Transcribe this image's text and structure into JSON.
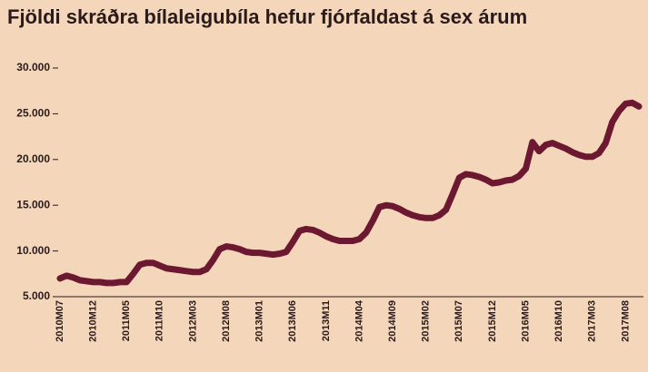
{
  "chart_data": {
    "type": "line",
    "title": "Fjöldi skráðra bílaleigubíla hefur fjórfaldast á sex árum",
    "categories": [
      "2010M07",
      null,
      null,
      null,
      null,
      "2010M12",
      null,
      null,
      null,
      null,
      "2011M05",
      null,
      null,
      null,
      null,
      "2011M10",
      null,
      null,
      null,
      null,
      "2012M03",
      null,
      null,
      null,
      null,
      "2012M08",
      null,
      null,
      null,
      null,
      "2013M01",
      null,
      null,
      null,
      null,
      "2013M06",
      null,
      null,
      null,
      null,
      "2013M11",
      null,
      null,
      null,
      null,
      "2014M04",
      null,
      null,
      null,
      null,
      "2014M09",
      null,
      null,
      null,
      null,
      "2015M02",
      null,
      null,
      null,
      null,
      "2015M07",
      null,
      null,
      null,
      null,
      "2015M12",
      null,
      null,
      null,
      null,
      "2016M05",
      null,
      null,
      null,
      null,
      "2016M10",
      null,
      null,
      null,
      null,
      "2017M03",
      null,
      null,
      null,
      null,
      "2017M08",
      null,
      null
    ],
    "values": [
      7000,
      7300,
      7100,
      6800,
      6700,
      6600,
      6600,
      6500,
      6500,
      6600,
      6600,
      7500,
      8500,
      8700,
      8700,
      8400,
      8100,
      8000,
      7900,
      7800,
      7700,
      7700,
      8000,
      9000,
      10200,
      10500,
      10400,
      10200,
      9900,
      9800,
      9800,
      9700,
      9600,
      9700,
      9900,
      11000,
      12200,
      12400,
      12300,
      12000,
      11600,
      11300,
      11100,
      11100,
      11100,
      11300,
      12000,
      13300,
      14800,
      15000,
      14900,
      14600,
      14200,
      13900,
      13700,
      13600,
      13600,
      13900,
      14500,
      16200,
      18000,
      18400,
      18300,
      18100,
      17800,
      17400,
      17500,
      17700,
      17800,
      18200,
      19000,
      21900,
      20900,
      21600,
      21800,
      21500,
      21200,
      20800,
      20500,
      20300,
      20300,
      20700,
      21800,
      24100,
      25300,
      26100,
      26200,
      25800
    ],
    "color": "#6b1830",
    "ylim": [
      5000,
      30000
    ],
    "yticks": [
      {
        "value": 5000,
        "label": "5.000"
      },
      {
        "value": 10000,
        "label": "10.000"
      },
      {
        "value": 15000,
        "label": "15.000"
      },
      {
        "value": 20000,
        "label": "20.000"
      },
      {
        "value": 25000,
        "label": "25.000"
      },
      {
        "value": 30000,
        "label": "30.000"
      }
    ]
  }
}
